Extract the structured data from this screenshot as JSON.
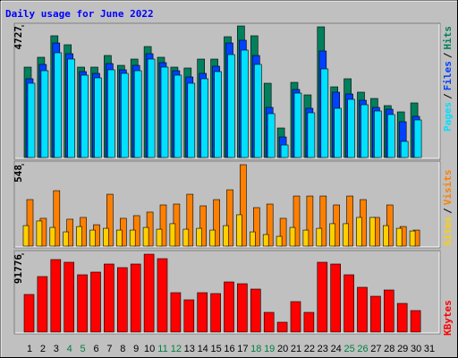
{
  "chart_data": [
    {
      "type": "bar",
      "title": "Daily usage for June 2022",
      "legend_separator": "/",
      "ylim": [
        0,
        4727
      ],
      "yticks": [
        4727
      ],
      "series": [
        {
          "name": "Hits",
          "color": "#00805c",
          "values": [
            3248,
            3602,
            4374,
            4052,
            3248,
            3248,
            3666,
            3312,
            3537,
            3988,
            3602,
            3248,
            3216,
            3537,
            3537,
            4341,
            4727,
            4374,
            2669,
            1061,
            2701,
            2251,
            4695,
            2540,
            2830,
            2348,
            2122,
            1865,
            1640,
            1962,
            null
          ]
        },
        {
          "name": "Files",
          "color": "#0040ff",
          "values": [
            2830,
            3345,
            4116,
            3730,
            3087,
            3023,
            3377,
            3152,
            3312,
            3730,
            3409,
            3119,
            2894,
            3023,
            3280,
            4116,
            4213,
            3666,
            1801,
            740,
            2444,
            1769,
            3827,
            2348,
            2283,
            2058,
            1801,
            1737,
            1286,
            1479,
            null
          ]
        },
        {
          "name": "Pages",
          "color": "#00e0ff",
          "values": [
            2669,
            3119,
            3763,
            3537,
            2959,
            2862,
            3152,
            3023,
            3119,
            3537,
            3248,
            2959,
            2669,
            2830,
            3087,
            3698,
            3859,
            3345,
            1576,
            450,
            2315,
            1608,
            3184,
            1769,
            2090,
            1897,
            1672,
            1544,
            579,
            1351,
            null
          ]
        }
      ]
    },
    {
      "type": "bar",
      "legend_separator": "/",
      "ylim": [
        0,
        548
      ],
      "yticks": [
        548
      ],
      "series": [
        {
          "name": "Visits",
          "color": "#ff8000",
          "values": [
            313,
            187,
            373,
            181,
            193,
            144,
            349,
            187,
            205,
            229,
            277,
            283,
            349,
            271,
            313,
            379,
            548,
            259,
            283,
            187,
            337,
            337,
            337,
            277,
            337,
            313,
            193,
            277,
            132,
            108,
            null
          ]
        },
        {
          "name": "Sites",
          "color": "#ffd000",
          "values": [
            138,
            169,
            126,
            96,
            132,
            108,
            120,
            108,
            108,
            126,
            114,
            151,
            114,
            120,
            108,
            138,
            211,
            96,
            78,
            66,
            126,
            108,
            120,
            151,
            151,
            193,
            193,
            138,
            120,
            102,
            null
          ]
        }
      ]
    },
    {
      "type": "bar",
      "ylim": [
        0,
        91776
      ],
      "yticks": [
        91776
      ],
      "categories": [
        "1",
        "2",
        "3",
        "4",
        "5",
        "6",
        "7",
        "8",
        "9",
        "10",
        "11",
        "12",
        "13",
        "14",
        "15",
        "16",
        "17",
        "18",
        "19",
        "20",
        "21",
        "22",
        "23",
        "24",
        "25",
        "26",
        "27",
        "28",
        "29",
        "30",
        "31"
      ],
      "category_colors": [
        "#000000",
        "#000000",
        "#000000",
        "#008040",
        "#008040",
        "#000000",
        "#000000",
        "#000000",
        "#000000",
        "#000000",
        "#008040",
        "#008040",
        "#000000",
        "#000000",
        "#000000",
        "#000000",
        "#000000",
        "#008040",
        "#008040",
        "#000000",
        "#000000",
        "#000000",
        "#000000",
        "#000000",
        "#008040",
        "#008040",
        "#000000",
        "#000000",
        "#000000",
        "#000000",
        "#000000"
      ],
      "series": [
        {
          "name": "KBytes",
          "color": "#ff0000",
          "values": [
            44306,
            65404,
            85447,
            82282,
            67514,
            70678,
            80172,
            75953,
            80172,
            91776,
            86502,
            46416,
            37976,
            46416,
            45361,
            59074,
            56965,
            50635,
            23208,
            11604,
            35867,
            23208,
            82282,
            80172,
            67514,
            52745,
            42196,
            49580,
            33757,
            25318,
            null
          ]
        }
      ]
    }
  ]
}
